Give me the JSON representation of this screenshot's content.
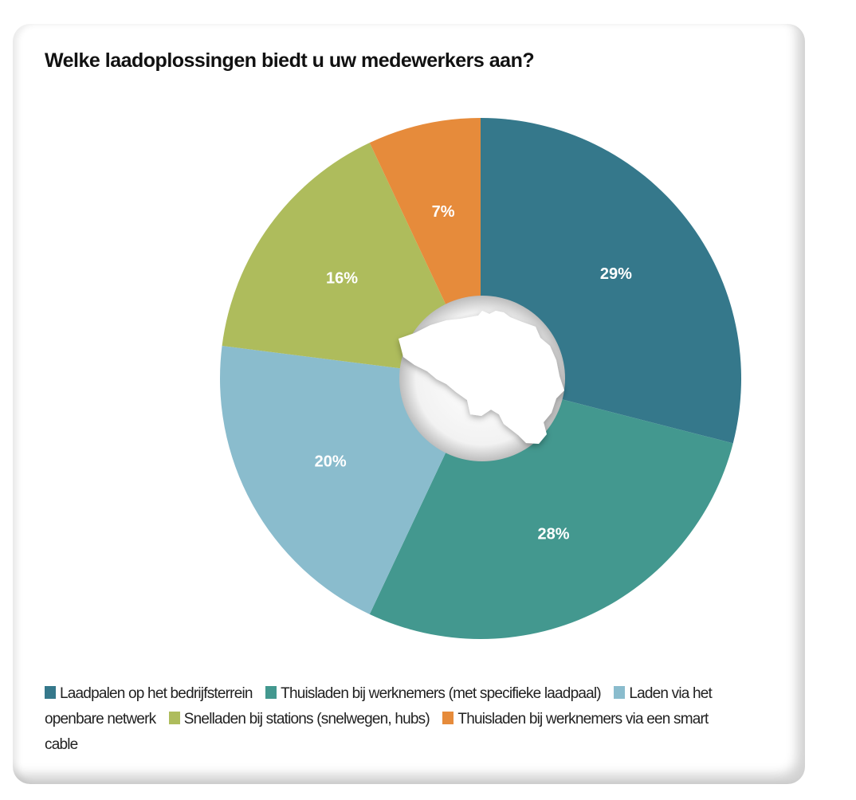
{
  "chart_data": {
    "type": "pie",
    "title": "Welke laadoplossingen biedt u uw medewerkers aan?",
    "categories": [
      "Laadpalen op het bedrijfsterrein",
      "Thuisladen bij werknemers (met specifieke laadpaal)",
      "Laden via het openbare netwerk",
      "Snelladen bij stations (snelwegen, hubs)",
      "Thuisladen bij werknemers via een smart cable"
    ],
    "values": [
      29,
      28,
      20,
      16,
      7
    ],
    "labels": [
      "29%",
      "28%",
      "20%",
      "16%",
      "7%"
    ],
    "colors": [
      "#35788b",
      "#43988f",
      "#8abccd",
      "#aebc5c",
      "#e68b3b"
    ],
    "donut": true,
    "center_image": "belgium-map",
    "legend_position": "bottom"
  }
}
